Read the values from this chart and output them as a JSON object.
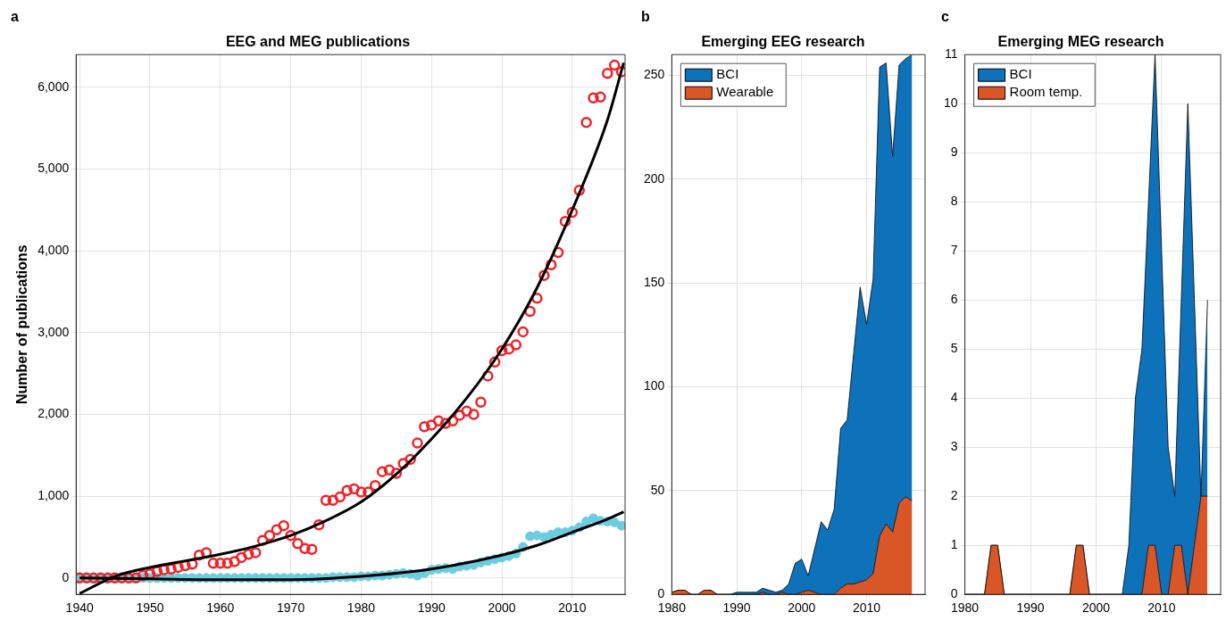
{
  "chart_data": [
    {
      "type": "scatter",
      "title": "EEG and MEG publications",
      "ylabel": "Number of publications",
      "annotations": [
        "a"
      ],
      "grid": true,
      "legend": false,
      "x": [
        1940,
        1941,
        1942,
        1943,
        1944,
        1945,
        1946,
        1947,
        1948,
        1949,
        1950,
        1951,
        1952,
        1953,
        1954,
        1955,
        1956,
        1957,
        1958,
        1959,
        1960,
        1961,
        1962,
        1963,
        1964,
        1965,
        1966,
        1967,
        1968,
        1969,
        1970,
        1971,
        1972,
        1973,
        1974,
        1975,
        1976,
        1977,
        1978,
        1979,
        1980,
        1981,
        1982,
        1983,
        1984,
        1985,
        1986,
        1987,
        1988,
        1989,
        1990,
        1991,
        1992,
        1993,
        1994,
        1995,
        1996,
        1997,
        1998,
        1999,
        2000,
        2001,
        2002,
        2003,
        2004,
        2005,
        2006,
        2007,
        2008,
        2009,
        2010,
        2011,
        2012,
        2013,
        2014,
        2015,
        2016,
        2017
      ],
      "xlim": [
        1939.5,
        2017.5
      ],
      "xticks": [
        1940,
        1950,
        1960,
        1970,
        1980,
        1990,
        2000,
        2010
      ],
      "ylim": [
        -200,
        6400
      ],
      "yticks": [
        {
          "value": 0,
          "label": "0"
        },
        {
          "value": 1000,
          "label": "1,000"
        },
        {
          "value": 2000,
          "label": "2,000"
        },
        {
          "value": 3000,
          "label": "3,000"
        },
        {
          "value": 4000,
          "label": "4,000"
        },
        {
          "value": 5000,
          "label": "5,000"
        },
        {
          "value": 6000,
          "label": "6,000"
        }
      ],
      "series": [
        {
          "marker": "circle",
          "color": "#ee2228",
          "values": [
            0,
            0,
            0,
            0,
            0,
            0,
            0,
            0,
            0,
            30,
            50,
            80,
            100,
            110,
            130,
            150,
            170,
            280,
            310,
            180,
            180,
            180,
            200,
            250,
            290,
            310,
            460,
            520,
            590,
            640,
            520,
            420,
            360,
            350,
            650,
            950,
            950,
            990,
            1070,
            1090,
            1050,
            1050,
            1130,
            1300,
            1320,
            1280,
            1400,
            1450,
            1650,
            1850,
            1870,
            1920,
            1890,
            1920,
            1990,
            2040,
            2000,
            2150,
            2470,
            2640,
            2780,
            2800,
            2850,
            3010,
            3260,
            3420,
            3700,
            3830,
            3980,
            4360,
            4470,
            4740,
            5570,
            5870,
            5880,
            6170,
            6270,
            6190
          ]
        },
        {
          "marker": "circle",
          "color": "#6ccde0",
          "values": [
            0,
            0,
            0,
            0,
            0,
            0,
            0,
            0,
            0,
            0,
            0,
            0,
            0,
            0,
            0,
            0,
            0,
            0,
            0,
            0,
            0,
            0,
            0,
            0,
            0,
            0,
            0,
            0,
            0,
            0,
            0,
            0,
            0,
            0,
            0,
            0,
            10,
            10,
            10,
            10,
            20,
            20,
            30,
            30,
            40,
            50,
            60,
            50,
            30,
            60,
            100,
            110,
            120,
            110,
            140,
            150,
            160,
            190,
            210,
            230,
            250,
            270,
            300,
            380,
            510,
            520,
            500,
            530,
            560,
            560,
            580,
            620,
            690,
            730,
            700,
            690,
            680,
            640
          ]
        },
        {
          "type": "line",
          "marker": "none",
          "line_style": "solid",
          "color": "#000000",
          "x": [
            1940,
            1945,
            1950,
            1955,
            1960,
            1965,
            1970,
            1975,
            1980,
            1985,
            1990,
            1995,
            2000,
            2005,
            2010,
            2015,
            2017.3
          ],
          "values": [
            -190,
            20,
            130,
            210,
            290,
            390,
            520,
            700,
            930,
            1270,
            1700,
            2200,
            2800,
            3550,
            4500,
            5600,
            6300
          ]
        },
        {
          "type": "line",
          "marker": "none",
          "line_style": "solid",
          "color": "#000000",
          "x": [
            1940,
            1950,
            1960,
            1970,
            1980,
            1990,
            2000,
            2005,
            2010,
            2015,
            2017.3
          ],
          "values": [
            0,
            -10,
            -20,
            -20,
            20,
            110,
            280,
            400,
            560,
            720,
            810
          ]
        }
      ]
    },
    {
      "type": "area",
      "stacked": true,
      "title": "Emerging EEG research",
      "annotations": [
        "b"
      ],
      "grid": true,
      "legend": "top left",
      "x": [
        1980,
        1981,
        1982,
        1983,
        1984,
        1985,
        1986,
        1987,
        1988,
        1989,
        1990,
        1991,
        1992,
        1993,
        1994,
        1995,
        1996,
        1997,
        1998,
        1999,
        2000,
        2001,
        2002,
        2003,
        2004,
        2005,
        2006,
        2007,
        2008,
        2009,
        2010,
        2011,
        2012,
        2013,
        2014,
        2015,
        2016,
        2017
      ],
      "xlim": [
        1980,
        2019
      ],
      "xticks": [
        1980,
        1990,
        2000,
        2010
      ],
      "ylim": [
        0,
        260
      ],
      "yticks": [
        0,
        50,
        100,
        150,
        200,
        250
      ],
      "series": [
        {
          "name": "Wearable",
          "color": "#d95627",
          "values": [
            1,
            2,
            2,
            0,
            0,
            2,
            2,
            0,
            0,
            0,
            0,
            0,
            0,
            0,
            1,
            0,
            0,
            1,
            0,
            0,
            1,
            2,
            1,
            0,
            0,
            0,
            3,
            5,
            5,
            6,
            7,
            10,
            28,
            34,
            30,
            44,
            47,
            45
          ]
        },
        {
          "name": "BCI",
          "color": "#0e72bb",
          "values": [
            0,
            0,
            0,
            0,
            0,
            0,
            0,
            0,
            0,
            0,
            1,
            1,
            1,
            1,
            2,
            2,
            1,
            1,
            5,
            15,
            16,
            7,
            21,
            35,
            31,
            41,
            77,
            79,
            111,
            142,
            123,
            142,
            226,
            222,
            181,
            211,
            211,
            215
          ]
        }
      ]
    },
    {
      "type": "area",
      "stacked": true,
      "title": "Emerging MEG research",
      "annotations": [
        "c"
      ],
      "grid": true,
      "legend": "top left",
      "x": [
        1980,
        1981,
        1982,
        1983,
        1984,
        1985,
        1986,
        1987,
        1988,
        1989,
        1990,
        1991,
        1992,
        1993,
        1994,
        1995,
        1996,
        1997,
        1998,
        1999,
        2000,
        2001,
        2002,
        2003,
        2004,
        2005,
        2006,
        2007,
        2008,
        2009,
        2010,
        2011,
        2012,
        2013,
        2014,
        2015,
        2016,
        2017
      ],
      "xlim": [
        1980,
        2019
      ],
      "xticks": [
        1980,
        1990,
        2000,
        2010
      ],
      "ylim": [
        0,
        11
      ],
      "yticks": [
        0,
        1,
        2,
        3,
        4,
        5,
        6,
        7,
        8,
        9,
        10,
        11
      ],
      "series": [
        {
          "name": "Room temp.",
          "color": "#d95627",
          "values": [
            0,
            0,
            0,
            0,
            1,
            1,
            0,
            0,
            0,
            0,
            0,
            0,
            0,
            0,
            0,
            0,
            0,
            1,
            1,
            0,
            0,
            0,
            0,
            0,
            0,
            0,
            0,
            0,
            1,
            1,
            0,
            0,
            1,
            1,
            0,
            1,
            2,
            2
          ]
        },
        {
          "name": "BCI",
          "color": "#0e72bb",
          "values": [
            0,
            0,
            0,
            0,
            0,
            0,
            0,
            0,
            0,
            0,
            0,
            0,
            0,
            0,
            0,
            0,
            0,
            0,
            0,
            0,
            0,
            0,
            0,
            0,
            0,
            1,
            4,
            5,
            7,
            10,
            7,
            3,
            1,
            5,
            10,
            5,
            0,
            4
          ]
        }
      ]
    }
  ]
}
